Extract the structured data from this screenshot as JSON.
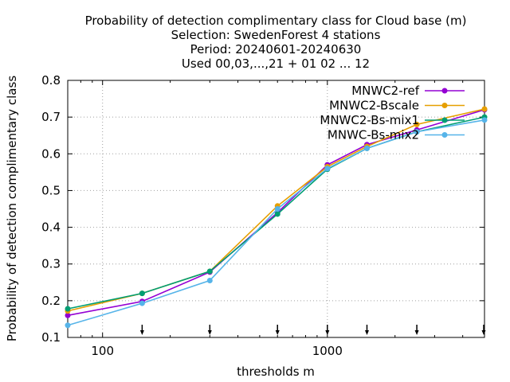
{
  "chart_data": {
    "type": "line",
    "title_lines": [
      "Probability of detection complimentary class  for Cloud base (m)",
      "Selection: SwedenForest      4 stations",
      "Period: 20240601-20240630",
      "Used 00,03,...,21 + 01 02 ... 12"
    ],
    "xlabel": "thresholds m",
    "ylabel": "Probability of detection complimentary class",
    "x_scale": "log",
    "xlim": [
      70,
      5000
    ],
    "ylim": [
      0.1,
      0.8
    ],
    "x_ticks": [
      100,
      1000
    ],
    "x_tick_labels": [
      "100",
      "1000"
    ],
    "y_ticks": [
      0.1,
      0.2,
      0.3,
      0.4,
      0.5,
      0.6,
      0.7,
      0.8
    ],
    "y_tick_labels": [
      "0.1",
      "0.2",
      "0.3",
      "0.4",
      "0.5",
      "0.6",
      "0.7",
      "0.8"
    ],
    "grid": true,
    "legend_position": "top-right",
    "threshold_markers": [
      150,
      300,
      600,
      1000,
      1500,
      2500,
      5000
    ],
    "series": [
      {
        "name": "MNWC2-ref",
        "color": "#9400d3",
        "marker": "filled-circle",
        "x": [
          70,
          150,
          300,
          600,
          1000,
          1500,
          2500,
          5000
        ],
        "y": [
          0.16,
          0.198,
          0.278,
          0.44,
          0.57,
          0.625,
          0.665,
          0.72
        ]
      },
      {
        "name": "MNWC2-Bscale",
        "color": "#e69f00",
        "marker": "filled-circle",
        "x": [
          70,
          150,
          300,
          600,
          1000,
          1500,
          2500,
          5000
        ],
        "y": [
          0.172,
          0.22,
          0.28,
          0.458,
          0.565,
          0.62,
          0.68,
          0.722
        ]
      },
      {
        "name": "MNWC2-Bs-mix1",
        "color": "#009e73",
        "marker": "filled-circle",
        "x": [
          70,
          150,
          300,
          600,
          1000,
          1500,
          2500,
          5000
        ],
        "y": [
          0.178,
          0.22,
          0.28,
          0.436,
          0.558,
          0.615,
          0.66,
          0.7
        ]
      },
      {
        "name": "MNWC-Bs-mix2",
        "color": "#56b4e9",
        "marker": "filled-circle",
        "x": [
          70,
          150,
          300,
          600,
          1000,
          1500,
          2500,
          5000
        ],
        "y": [
          0.133,
          0.193,
          0.255,
          0.45,
          0.56,
          0.615,
          0.66,
          0.692
        ]
      }
    ]
  }
}
